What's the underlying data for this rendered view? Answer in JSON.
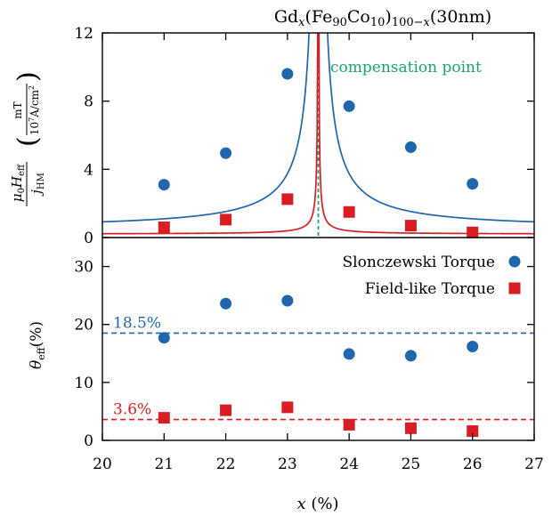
{
  "chart_data": [
    {
      "type": "scatter",
      "title": "Gd_x(Fe90Co10)100−x(30nm)",
      "ylabel": "μ0Heff/jHM (mT/10⁷A/cm²)",
      "xlim": [
        20,
        27
      ],
      "ylim": [
        0,
        12
      ],
      "yticks": [
        0,
        4,
        8,
        12
      ],
      "compensation_x": 23.5,
      "annotation": "compensation point",
      "series": [
        {
          "key": "sl",
          "color": "#1f66ad",
          "marker": "circle",
          "points": [
            [
              21,
              3.1
            ],
            [
              22,
              4.95
            ],
            [
              23,
              9.6
            ],
            [
              24,
              7.7
            ],
            [
              25,
              5.3
            ],
            [
              26,
              3.15
            ]
          ],
          "fit": {
            "A": 1.57,
            "B": 0.5
          }
        },
        {
          "key": "fl",
          "color": "#d91e23",
          "marker": "square",
          "points": [
            [
              21,
              0.6
            ],
            [
              22,
              1.05
            ],
            [
              23,
              2.25
            ],
            [
              24,
              1.5
            ],
            [
              25,
              0.7
            ],
            [
              26,
              0.3
            ]
          ],
          "fit": {
            "A": 0.095,
            "B": 0.2
          }
        }
      ]
    },
    {
      "type": "scatter",
      "xlabel": "x (%)",
      "ylabel": "θeff(%)",
      "xlim": [
        20,
        27
      ],
      "ylim": [
        0,
        35
      ],
      "xticks": [
        20,
        21,
        22,
        23,
        24,
        25,
        26,
        27
      ],
      "yticks": [
        0,
        10,
        20,
        30
      ],
      "legend": "top-right",
      "series": [
        {
          "key": "sl",
          "name": "Slonczewski Torque",
          "color": "#1f66ad",
          "marker": "circle",
          "points": [
            [
              21,
              17.7
            ],
            [
              22,
              23.6
            ],
            [
              23,
              24.1
            ],
            [
              24,
              14.9
            ],
            [
              25,
              14.6
            ],
            [
              26,
              16.2
            ]
          ],
          "average": 18.5,
          "average_label": "18.5%"
        },
        {
          "key": "fl",
          "name": "Field-like Torque",
          "color": "#d91e23",
          "marker": "square",
          "points": [
            [
              21,
              3.9
            ],
            [
              22,
              5.2
            ],
            [
              23,
              5.7
            ],
            [
              24,
              2.7
            ],
            [
              25,
              2.1
            ],
            [
              26,
              1.6
            ]
          ],
          "average": 3.6,
          "average_label": "3.6%"
        }
      ]
    }
  ]
}
